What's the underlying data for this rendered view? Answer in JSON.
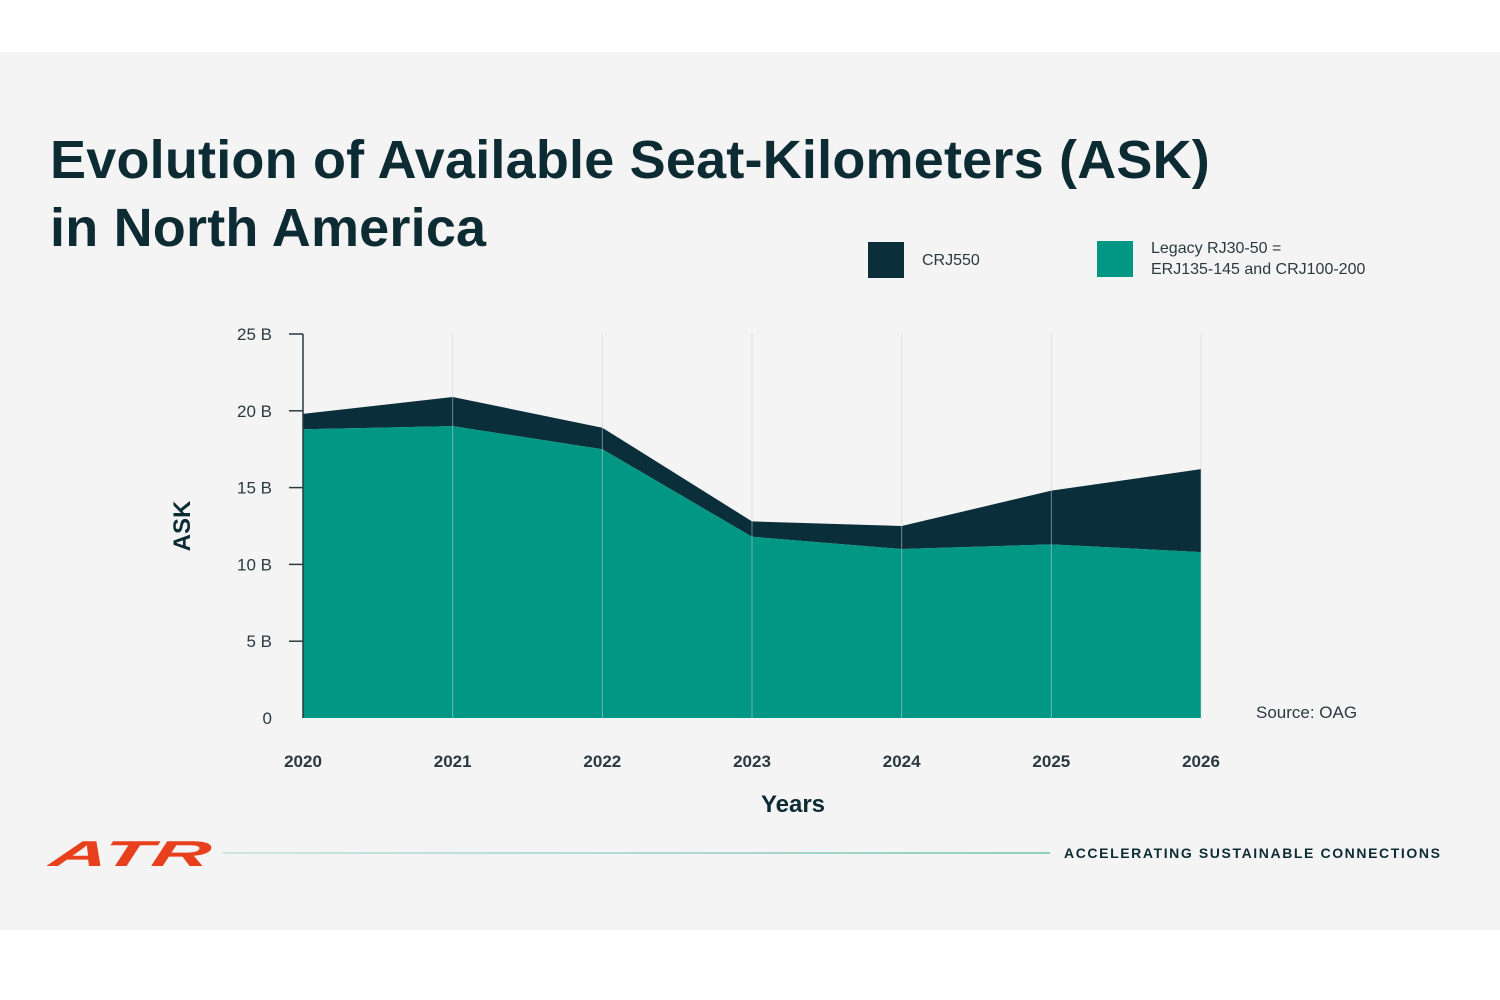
{
  "title_lines": [
    "Evolution of Available Seat-Kilometers (ASK)",
    "in North America"
  ],
  "source_note": "Source: OAG",
  "brand": {
    "logo": "ATR",
    "tagline": "ACCELERATING SUSTAINABLE CONNECTIONS",
    "logo_color": "#e8401c"
  },
  "legend": {
    "crj550_label": "CRJ550",
    "legacy_label": "Legacy RJ30-50 =\nERJ135-145 and CRJ100-200"
  },
  "colors": {
    "crj550": "#0b2f3a",
    "legacy": "#009784",
    "axis": "#2a3a40",
    "grid": "#c9cfcf"
  },
  "chart_data": {
    "type": "area",
    "stacked": true,
    "title": "Evolution of Available Seat-Kilometers (ASK) in North America",
    "xlabel": "Years",
    "ylabel": "ASK",
    "x": [
      2020,
      2021,
      2022,
      2023,
      2024,
      2025,
      2026
    ],
    "ylim": [
      0,
      25
    ],
    "yticks": [
      {
        "value": 0,
        "label": "0"
      },
      {
        "value": 5,
        "label": "5 B"
      },
      {
        "value": 10,
        "label": "10 B"
      },
      {
        "value": 15,
        "label": "15 B"
      },
      {
        "value": 20,
        "label": "20 B"
      },
      {
        "value": 25,
        "label": "25 B"
      }
    ],
    "grid": "vertical",
    "legend_position": "top-right",
    "series": [
      {
        "name": "Legacy RJ30-50 = ERJ135-145 and CRJ100-200",
        "values": [
          18.8,
          19.0,
          17.5,
          11.8,
          11.0,
          11.3,
          10.8
        ]
      },
      {
        "name": "CRJ550",
        "values": [
          1.0,
          1.9,
          1.4,
          1.0,
          1.5,
          3.5,
          5.4
        ]
      }
    ]
  }
}
